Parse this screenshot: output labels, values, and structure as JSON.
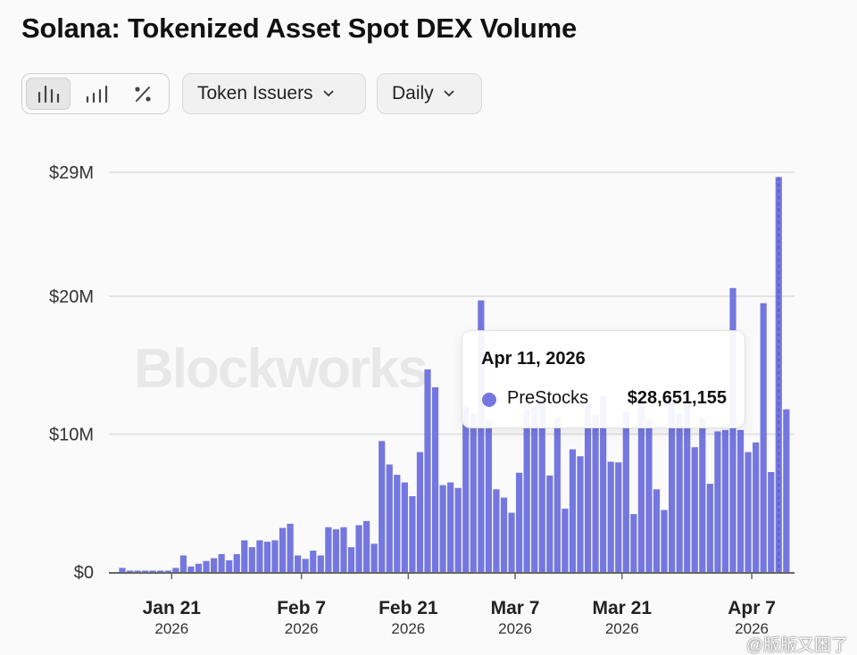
{
  "title": "Solana: Tokenized Asset Spot DEX Volume",
  "toolbar": {
    "view_buttons": [
      {
        "icon": "bar-chart-icon",
        "active": true
      },
      {
        "icon": "stacked-bar-icon",
        "active": false
      },
      {
        "icon": "percent-icon",
        "active": false
      }
    ],
    "group_dropdown": "Token Issuers",
    "interval_dropdown": "Daily"
  },
  "watermark": "Blockworks",
  "corner_watermark": "@版版又困了",
  "tooltip": {
    "date": "Apr 11, 2026",
    "series": "PreStocks",
    "value": "$28,651,155"
  },
  "colors": {
    "bar": "#7477df",
    "grid": "#e3e3e3",
    "axis": "#666666"
  },
  "chart_data": {
    "type": "bar",
    "title": "Solana: Tokenized Asset Spot DEX Volume",
    "units": "USD millions",
    "ylim": [
      0,
      29
    ],
    "y_ticks": [
      {
        "v": 0,
        "label": "$0"
      },
      {
        "v": 10,
        "label": "$10M"
      },
      {
        "v": 20,
        "label": "$20M"
      },
      {
        "v": 29,
        "label": "$29M"
      }
    ],
    "x_ticks": [
      {
        "date": "2026-01-21",
        "label": "Jan 21",
        "year": "2026"
      },
      {
        "date": "2026-02-07",
        "label": "Feb 7",
        "year": "2026"
      },
      {
        "date": "2026-02-21",
        "label": "Feb 21",
        "year": "2026"
      },
      {
        "date": "2026-03-07",
        "label": "Mar 7",
        "year": "2026"
      },
      {
        "date": "2026-03-21",
        "label": "Mar 21",
        "year": "2026"
      },
      {
        "date": "2026-04-07",
        "label": "Apr 7",
        "year": "2026"
      }
    ],
    "grid": true,
    "highlighted": "2026-04-11",
    "series": [
      {
        "name": "PreStocks"
      }
    ],
    "x": [
      "2026-01-15",
      "2026-01-16",
      "2026-01-17",
      "2026-01-18",
      "2026-01-19",
      "2026-01-20",
      "2026-01-21",
      "2026-01-22",
      "2026-01-23",
      "2026-01-24",
      "2026-01-25",
      "2026-01-26",
      "2026-01-27",
      "2026-01-28",
      "2026-01-29",
      "2026-01-30",
      "2026-01-31",
      "2026-02-01",
      "2026-02-02",
      "2026-02-03",
      "2026-02-04",
      "2026-02-05",
      "2026-02-06",
      "2026-02-07",
      "2026-02-08",
      "2026-02-09",
      "2026-02-10",
      "2026-02-11",
      "2026-02-12",
      "2026-02-13",
      "2026-02-14",
      "2026-02-15",
      "2026-02-16",
      "2026-02-17",
      "2026-02-18",
      "2026-02-19",
      "2026-02-20",
      "2026-02-21",
      "2026-02-22",
      "2026-02-23",
      "2026-02-24",
      "2026-02-25",
      "2026-02-26",
      "2026-02-27",
      "2026-02-28",
      "2026-03-01",
      "2026-03-02",
      "2026-03-03",
      "2026-03-04",
      "2026-03-05",
      "2026-03-06",
      "2026-03-07",
      "2026-03-08",
      "2026-03-09",
      "2026-03-10",
      "2026-03-11",
      "2026-03-12",
      "2026-03-13",
      "2026-03-14",
      "2026-03-15",
      "2026-03-16",
      "2026-03-17",
      "2026-03-18",
      "2026-03-19",
      "2026-03-20",
      "2026-03-21",
      "2026-03-22",
      "2026-03-23",
      "2026-03-24",
      "2026-03-25",
      "2026-03-26",
      "2026-03-27",
      "2026-03-28",
      "2026-03-29",
      "2026-03-30",
      "2026-03-31",
      "2026-04-01",
      "2026-04-02",
      "2026-04-03",
      "2026-04-04",
      "2026-04-05",
      "2026-04-06",
      "2026-04-07",
      "2026-04-08",
      "2026-04-09",
      "2026-04-10",
      "2026-04-11",
      "2026-04-12"
    ],
    "values": [
      0.3,
      0.1,
      0.1,
      0.1,
      0.1,
      0.1,
      0.1,
      0.3,
      1.2,
      0.4,
      0.6,
      0.8,
      1.0,
      1.3,
      0.85,
      1.3,
      2.3,
      1.8,
      2.3,
      2.2,
      2.3,
      3.2,
      3.5,
      1.2,
      0.95,
      1.55,
      1.2,
      3.25,
      3.1,
      3.25,
      1.8,
      3.4,
      3.7,
      2.05,
      9.5,
      7.8,
      7.05,
      6.5,
      5.5,
      8.7,
      14.7,
      13.4,
      6.3,
      6.5,
      6.1,
      12.0,
      11.5,
      19.7,
      11.0,
      6.0,
      5.4,
      4.3,
      7.2,
      11.8,
      12.0,
      12.5,
      7.0,
      11.2,
      4.6,
      8.9,
      8.4,
      12.2,
      11.4,
      12.8,
      8.0,
      7.95,
      11.6,
      4.2,
      12.4,
      11.0,
      6.0,
      4.5,
      13.0,
      11.5,
      12.6,
      9.05,
      11.2,
      6.4,
      10.2,
      10.3,
      20.6,
      10.3,
      8.7,
      9.4,
      19.5,
      7.25,
      28.65,
      11.8
    ]
  }
}
